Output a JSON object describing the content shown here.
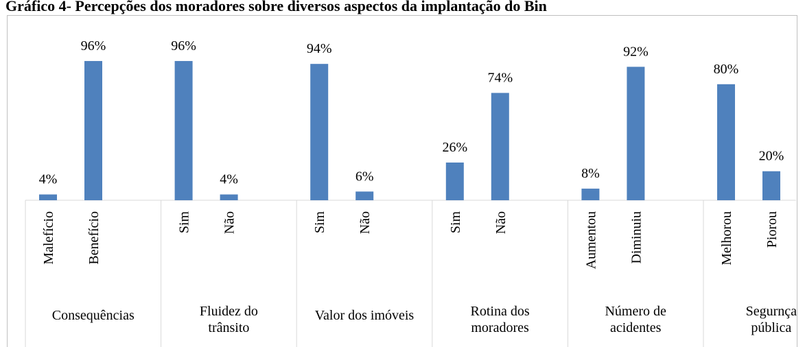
{
  "chart_data": {
    "type": "bar",
    "title": "Gráfico 4- Percepções dos moradores sobre diversos aspectos da implantação do Bin",
    "categories": [
      "Malefício",
      "Benefício",
      "Sim",
      "Não",
      "Sim",
      "Não",
      "Sim",
      "Não",
      "Aumentou",
      "Diminuiu",
      "Melhorou",
      "Piorou"
    ],
    "groups": [
      [
        "Consequências"
      ],
      [
        "Fluidez do",
        "trânsito"
      ],
      [
        "Valor dos imóveis"
      ],
      [
        "Rotina dos",
        "moradores"
      ],
      [
        "Número de",
        "acidentes"
      ],
      [
        "Segurnça",
        "pública"
      ]
    ],
    "values": [
      4,
      96,
      96,
      4,
      94,
      6,
      26,
      74,
      8,
      92,
      80,
      20
    ],
    "value_labels": [
      "4%",
      "96%",
      "96%",
      "4%",
      "94%",
      "6%",
      "26%",
      "74%",
      "8%",
      "92%",
      "80%",
      "20%"
    ],
    "color": "#4f81bd"
  }
}
